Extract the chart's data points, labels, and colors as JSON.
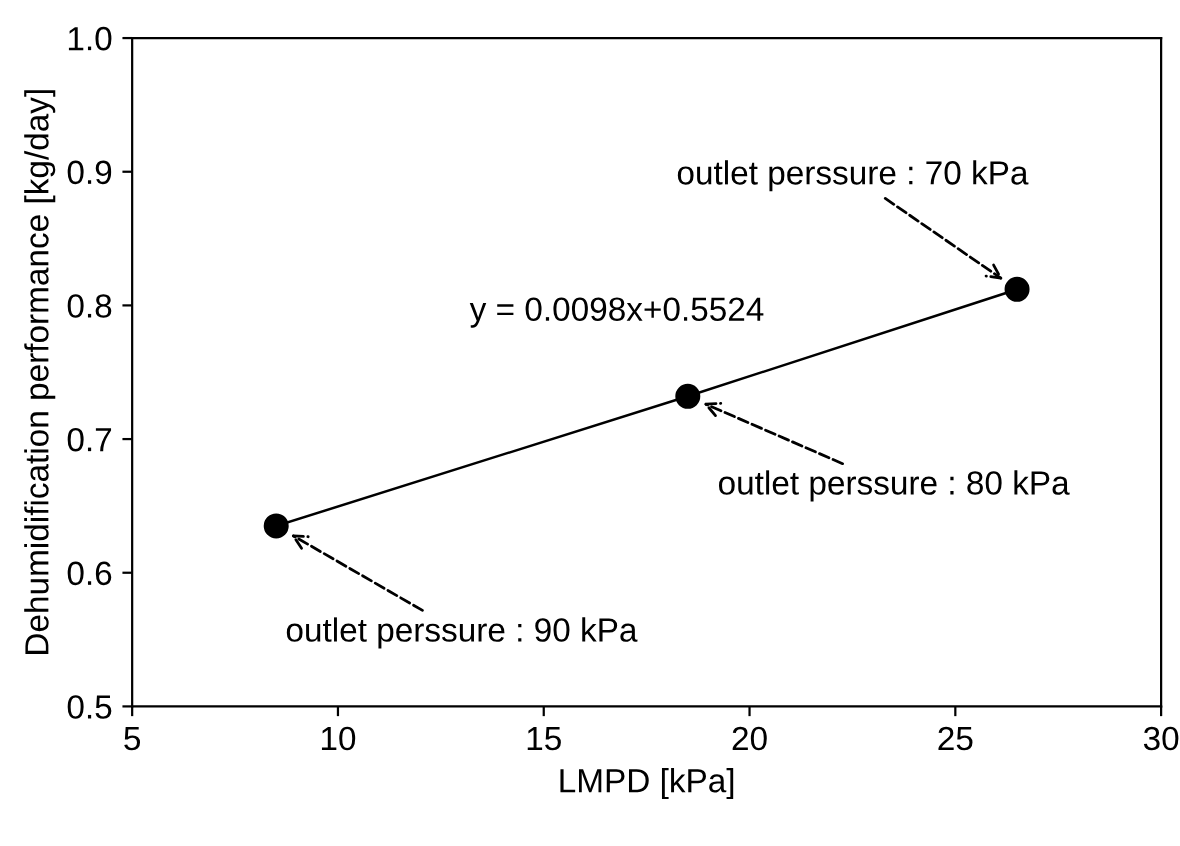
{
  "chart_data": {
    "type": "line",
    "xlabel": "LMPD [kPa]",
    "ylabel": "Dehumidification performance [kg/day]",
    "series": [
      {
        "x": [
          8.5,
          18.5,
          26.5
        ],
        "values": [
          0.635,
          0.732,
          0.812
        ],
        "color": "#000000"
      }
    ],
    "marker": "circle",
    "line_style": "solid",
    "xlim": [
      5,
      30
    ],
    "xticks": [
      5,
      10,
      15,
      20,
      25,
      30
    ],
    "ylim": [
      0.5,
      1.0
    ],
    "yticks": [
      {
        "value": 0.5,
        "label": "0.5"
      },
      {
        "value": 0.6,
        "label": "0.6"
      },
      {
        "value": 0.7,
        "label": "0.7"
      },
      {
        "value": 0.8,
        "label": "0.8"
      },
      {
        "value": 0.9,
        "label": "0.9"
      },
      {
        "value": 1.0,
        "label": "1.0"
      }
    ],
    "grid": false,
    "legend": false,
    "annotations": [
      {
        "text": "outlet perssure : 70 kPa",
        "x": 26.5,
        "y": 0.812
      },
      {
        "text": "outlet perssure : 80 kPa",
        "x": 18.5,
        "y": 0.732
      },
      {
        "text": "outlet perssure : 90 kPa",
        "x": 8.5,
        "y": 0.635
      },
      "y = 0.0098x+0.5524"
    ]
  }
}
